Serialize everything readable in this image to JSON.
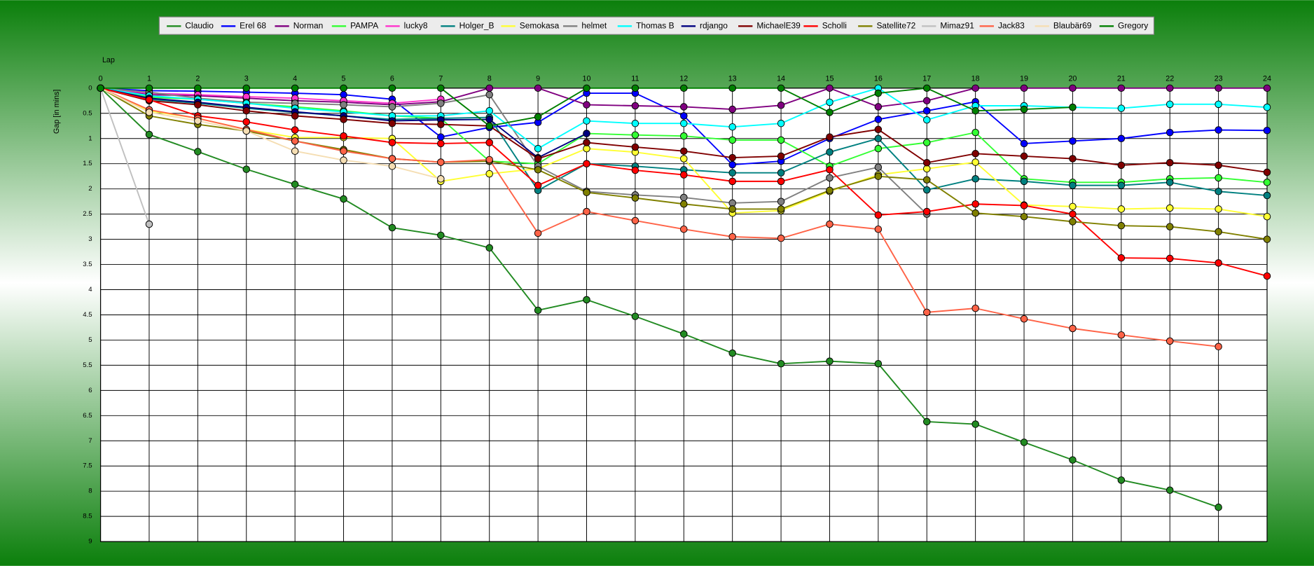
{
  "chart_data": {
    "type": "line",
    "x_label": "Lap",
    "y_label": "Gap [in mins]",
    "x": [
      0,
      1,
      2,
      3,
      4,
      5,
      6,
      7,
      8,
      9,
      10,
      11,
      12,
      13,
      14,
      15,
      16,
      17,
      18,
      19,
      20,
      21,
      22,
      23,
      24
    ],
    "xlim": [
      0,
      24
    ],
    "xticks": [
      0,
      1,
      2,
      3,
      4,
      5,
      6,
      7,
      8,
      9,
      10,
      11,
      12,
      13,
      14,
      15,
      16,
      17,
      18,
      19,
      20,
      21,
      22,
      23,
      24
    ],
    "ylim": [
      0,
      9
    ],
    "yticks": [
      0,
      0.5,
      1,
      1.5,
      2,
      2.5,
      3,
      3.5,
      4,
      4.5,
      5,
      5.5,
      6,
      6.5,
      7,
      7.5,
      8,
      8.5,
      9
    ],
    "y_inverted": true,
    "x_axis_position": "top",
    "grid": true,
    "legend": "top",
    "series": [
      {
        "name": "Claudio",
        "color": "#228b22",
        "values": [
          0,
          0.92,
          1.26,
          1.61,
          1.91,
          2.2,
          2.77,
          2.92,
          3.17,
          4.41,
          4.2,
          4.53,
          4.88,
          5.26,
          5.47,
          5.42,
          5.47,
          6.62,
          6.67,
          7.03,
          7.38,
          7.78,
          7.98,
          8.32,
          null
        ]
      },
      {
        "name": "Erel 68",
        "color": "#0000ff",
        "values": [
          0,
          0.05,
          0.06,
          0.08,
          0.1,
          0.13,
          0.22,
          0.97,
          0.78,
          0.68,
          0.1,
          0.1,
          0.55,
          1.52,
          1.45,
          1.0,
          0.62,
          0.45,
          0.27,
          1.1,
          1.05,
          1.0,
          0.88,
          0.83,
          0.84
        ]
      },
      {
        "name": "Norman",
        "color": "#800080",
        "values": [
          0,
          0.13,
          0.15,
          0.2,
          0.25,
          0.28,
          0.33,
          0.27,
          0,
          0,
          0.33,
          0.35,
          0.37,
          0.42,
          0.34,
          0,
          0.37,
          0.25,
          0,
          0,
          0,
          0,
          0,
          0,
          0
        ]
      },
      {
        "name": "PAMPA",
        "color": "#33ff33",
        "values": [
          0,
          0.18,
          0.22,
          0.3,
          0.37,
          0.45,
          0.55,
          0.6,
          1.45,
          1.5,
          0.9,
          0.93,
          0.95,
          1.03,
          1.03,
          1.55,
          1.2,
          1.08,
          0.88,
          1.8,
          1.87,
          1.87,
          1.8,
          1.78,
          1.87
        ]
      },
      {
        "name": "lucky8",
        "color": "#ff33cc",
        "values": [
          0,
          0.1,
          0.13,
          0.17,
          0.2,
          0.25,
          0.3,
          0.22,
          null,
          null,
          null,
          null,
          null,
          null,
          null,
          null,
          null,
          null,
          null,
          null,
          null,
          null,
          null,
          null,
          null
        ]
      },
      {
        "name": "Holger_B",
        "color": "#008080",
        "values": [
          0,
          0.22,
          0.3,
          0.4,
          0.48,
          0.55,
          0.62,
          0.6,
          0.58,
          2.03,
          1.5,
          1.55,
          1.62,
          1.68,
          1.68,
          1.27,
          1.0,
          2.02,
          1.8,
          1.85,
          1.93,
          1.93,
          1.87,
          2.05,
          2.13
        ]
      },
      {
        "name": "Semokasa",
        "color": "#ffff33",
        "values": [
          0,
          0.45,
          0.6,
          0.82,
          0.98,
          0.98,
          1.0,
          1.85,
          1.7,
          1.6,
          1.2,
          1.27,
          1.4,
          2.48,
          2.43,
          2.05,
          1.72,
          1.6,
          1.47,
          2.32,
          2.35,
          2.4,
          2.38,
          2.4,
          2.55
        ]
      },
      {
        "name": "helmet",
        "color": "#808080",
        "values": [
          0,
          0.08,
          0.2,
          0.28,
          0.3,
          0.33,
          0.37,
          0.3,
          0.13,
          1.55,
          2.05,
          2.12,
          2.17,
          2.28,
          2.25,
          1.78,
          1.57,
          2.5,
          null,
          null,
          null,
          null,
          null,
          null,
          null
        ]
      },
      {
        "name": "Thomas B",
        "color": "#00ffff",
        "values": [
          0,
          0.15,
          0.22,
          0.3,
          0.4,
          0.47,
          0.55,
          0.55,
          0.45,
          1.2,
          0.65,
          0.7,
          0.7,
          0.77,
          0.7,
          0.28,
          0,
          0.63,
          0.35,
          0.35,
          0.38,
          0.4,
          0.32,
          0.32,
          0.38
        ]
      },
      {
        "name": "rdjango",
        "color": "#000080",
        "values": [
          0,
          0.2,
          0.28,
          0.38,
          0.47,
          0.55,
          0.65,
          0.63,
          0.62,
          1.38,
          0.9,
          null,
          null,
          null,
          null,
          null,
          null,
          null,
          null,
          null,
          null,
          null,
          null,
          null,
          null
        ]
      },
      {
        "name": "MichaelE39",
        "color": "#800000",
        "values": [
          0,
          0.25,
          0.33,
          0.45,
          0.55,
          0.62,
          0.7,
          0.72,
          0.75,
          1.4,
          1.08,
          1.17,
          1.25,
          1.38,
          1.35,
          0.97,
          0.82,
          1.48,
          1.3,
          1.35,
          1.4,
          1.53,
          1.48,
          1.53,
          1.67
        ]
      },
      {
        "name": "Scholli",
        "color": "#ff0000",
        "values": [
          0,
          0.23,
          0.55,
          0.67,
          0.83,
          0.95,
          1.08,
          1.1,
          1.08,
          1.93,
          1.5,
          1.63,
          1.72,
          1.85,
          1.85,
          1.62,
          2.52,
          2.45,
          2.3,
          2.33,
          2.5,
          3.37,
          3.38,
          3.47,
          3.73
        ]
      },
      {
        "name": "Satellite72",
        "color": "#808000",
        "values": [
          0,
          0.55,
          0.72,
          0.85,
          1.05,
          1.22,
          1.4,
          1.47,
          1.45,
          1.62,
          2.07,
          2.18,
          2.3,
          2.4,
          2.4,
          2.03,
          1.75,
          1.82,
          2.48,
          2.55,
          2.65,
          2.73,
          2.75,
          2.85,
          3.0
        ]
      },
      {
        "name": "Mimaz91",
        "color": "#c0c0c0",
        "values": [
          0,
          2.7,
          null,
          null,
          null,
          null,
          null,
          null,
          null,
          null,
          null,
          null,
          null,
          null,
          null,
          null,
          null,
          null,
          null,
          null,
          null,
          null,
          null,
          null,
          null
        ]
      },
      {
        "name": "Jack83",
        "color": "#ff6347",
        "values": [
          0,
          0.43,
          0.6,
          0.82,
          1.05,
          1.25,
          1.4,
          1.47,
          1.42,
          2.88,
          2.45,
          2.63,
          2.8,
          2.95,
          2.98,
          2.7,
          2.8,
          4.45,
          4.37,
          4.58,
          4.77,
          4.9,
          5.02,
          5.13,
          null
        ]
      },
      {
        "name": "Blaubär69",
        "color": "#f5deb3",
        "values": [
          0,
          0.48,
          0.65,
          0.85,
          1.25,
          1.43,
          1.55,
          1.8,
          null,
          null,
          null,
          null,
          null,
          null,
          null,
          null,
          null,
          null,
          null,
          null,
          null,
          null,
          null,
          null,
          null
        ]
      },
      {
        "name": "Gregory",
        "color": "#008000",
        "values": [
          0,
          0,
          0,
          0,
          0,
          0,
          0,
          0,
          0.75,
          0.57,
          0,
          0,
          0,
          0,
          0,
          0.48,
          0.1,
          0,
          0.45,
          0.42,
          0.38,
          null,
          null,
          null,
          null
        ]
      }
    ]
  }
}
